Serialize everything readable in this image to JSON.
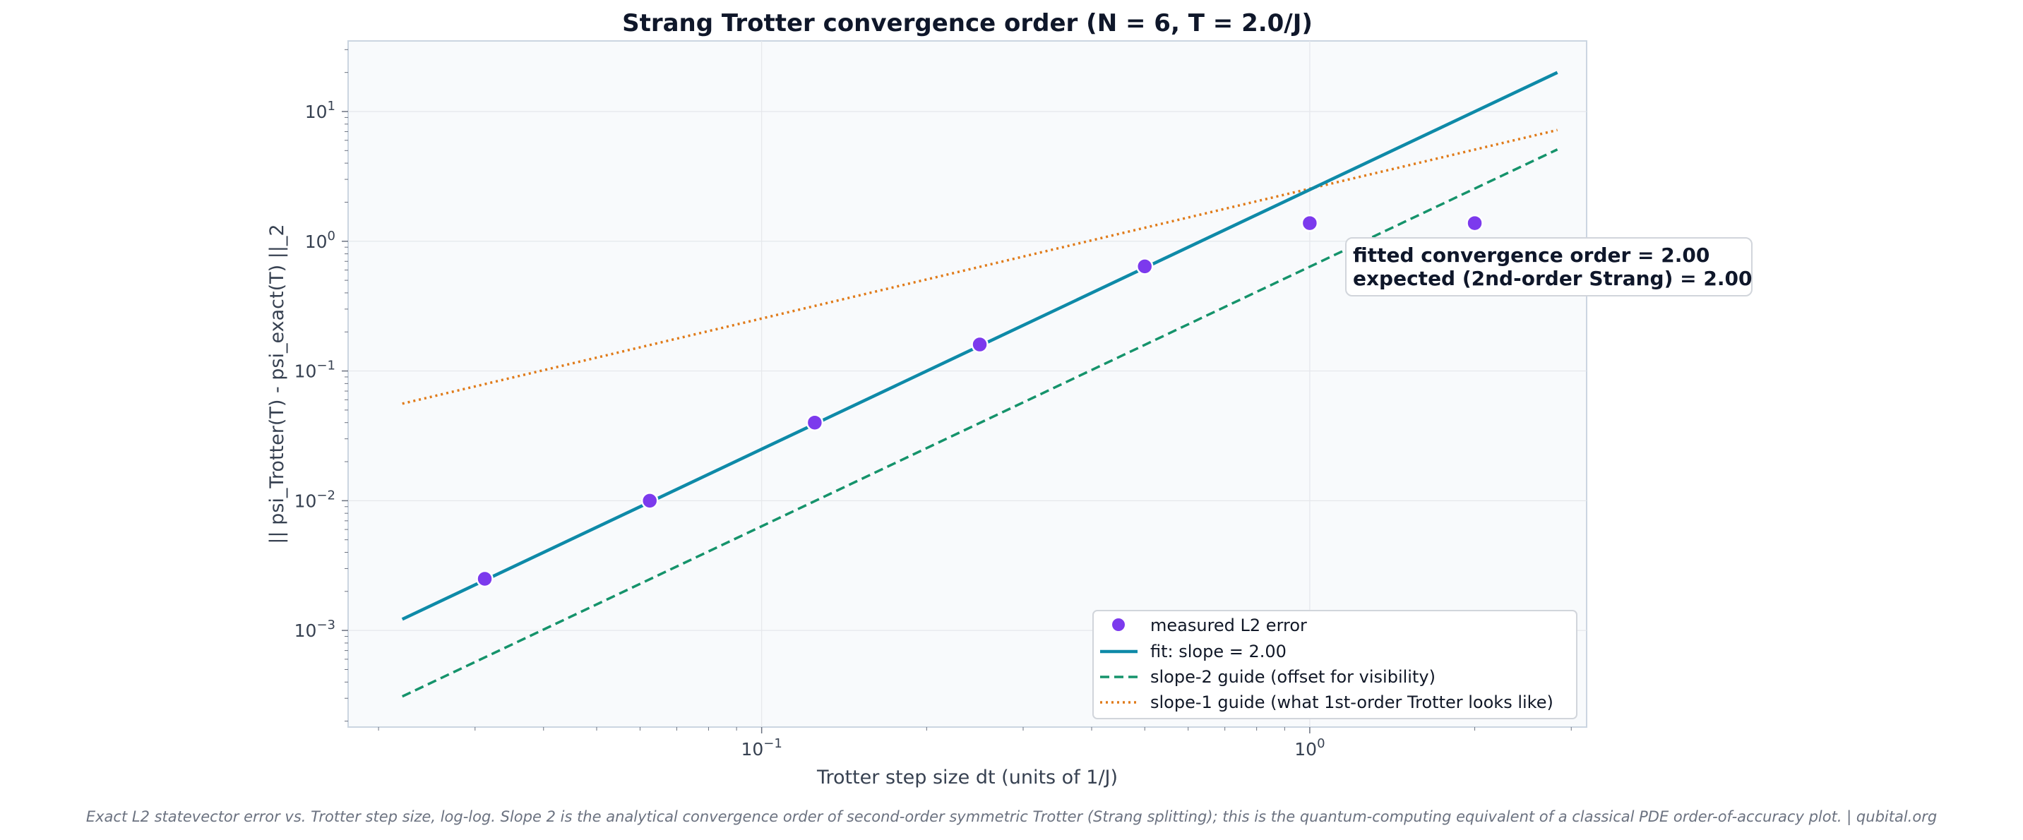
{
  "chart_data": {
    "type": "line",
    "title": "Strang Trotter convergence order  (N = 6, T = 2.0/J)",
    "xlabel": "Trotter step size dt (units of 1/J)",
    "ylabel": "|| psi_Trotter(T) - psi_exact(T) ||_2",
    "xscale": "log",
    "yscale": "log",
    "xlim": [
      0.0176,
      3.2
    ],
    "ylim": [
      0.00018,
      35
    ],
    "grid": true,
    "x_ticks": [
      {
        "value": 0.1,
        "base": "10",
        "exp": "−1"
      },
      {
        "value": 1,
        "base": "10",
        "exp": "0"
      }
    ],
    "y_ticks": [
      {
        "value": 0.001,
        "base": "10",
        "exp": "−3"
      },
      {
        "value": 0.01,
        "base": "10",
        "exp": "−2"
      },
      {
        "value": 0.1,
        "base": "10",
        "exp": "−1"
      },
      {
        "value": 1,
        "base": "10",
        "exp": "0"
      },
      {
        "value": 10,
        "base": "10",
        "exp": "1"
      }
    ],
    "series": [
      {
        "name": "measured L2 error",
        "kind": "scatter",
        "color": "#7c3aed",
        "x": [
          0.03125,
          0.0625,
          0.125,
          0.25,
          0.5,
          1.0,
          2.0
        ],
        "y": [
          0.0025,
          0.01,
          0.04,
          0.16,
          0.64,
          1.38,
          1.38
        ]
      },
      {
        "name": "fit: slope = 2.00",
        "kind": "line",
        "style": "solid",
        "color": "#0e8aa8",
        "x": [
          0.0221,
          2.83
        ],
        "y": [
          0.00122,
          20.0
        ]
      },
      {
        "name": "slope-2 guide (offset for visibility)",
        "kind": "line",
        "style": "dashed",
        "color": "#15936b",
        "x": [
          0.0221,
          2.83
        ],
        "y": [
          0.00031,
          5.1
        ]
      },
      {
        "name": "slope-1 guide (what 1st-order Trotter looks like)",
        "kind": "line",
        "style": "dotted",
        "color": "#e07b1a",
        "x": [
          0.0221,
          2.83
        ],
        "y": [
          0.056,
          7.2
        ]
      }
    ],
    "annotation": {
      "lines": [
        "fitted convergence order = 2.00",
        "expected (2nd-order Strang) = 2.00"
      ]
    },
    "legend_position": "bottom-right",
    "caption": "Exact L2 statevector error vs. Trotter step size, log-log.  Slope 2 is the analytical convergence order of second-order symmetric Trotter (Strang splitting); this is the quantum-computing equivalent of a classical PDE order-of-accuracy plot.  |  qubital.org"
  }
}
